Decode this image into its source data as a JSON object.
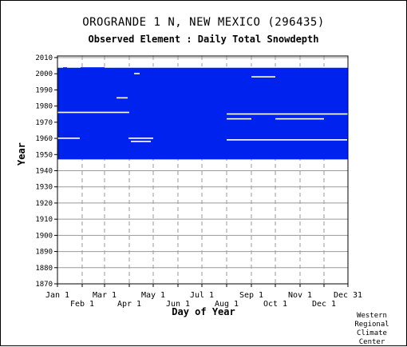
{
  "chart_data": {
    "type": "heatmap",
    "title": "OROGRANDE 1 N, NEW MEXICO   (296435)",
    "subtitle": "Observed Element : Daily Total Snowdepth",
    "xlabel": "Day of Year",
    "ylabel": "Year",
    "ylim": [
      1870,
      2011
    ],
    "xlim": [
      1,
      365
    ],
    "y_ticks": [
      1870,
      1880,
      1890,
      1900,
      1910,
      1920,
      1930,
      1940,
      1950,
      1960,
      1970,
      1980,
      1990,
      2000,
      2010
    ],
    "x_ticks_top_row": [
      {
        "label": "Jan 1",
        "day": 1
      },
      {
        "label": "Mar 1",
        "day": 60
      },
      {
        "label": "May 1",
        "day": 121
      },
      {
        "label": "Jul 1",
        "day": 182
      },
      {
        "label": "Sep 1",
        "day": 244
      },
      {
        "label": "Nov 1",
        "day": 305
      },
      {
        "label": "Dec 31",
        "day": 365
      }
    ],
    "x_ticks_bottom_row": [
      {
        "label": "Feb 1",
        "day": 32
      },
      {
        "label": "Apr 1",
        "day": 91
      },
      {
        "label": "Jun 1",
        "day": 152
      },
      {
        "label": "Aug 1",
        "day": 213
      },
      {
        "label": "Oct 1",
        "day": 274
      },
      {
        "label": "Dec 1",
        "day": 335
      }
    ],
    "grid": true,
    "data_color": "#0022ee",
    "record_coverage": {
      "start_year": 1948,
      "end_year": 2004
    },
    "missing_segments": [
      {
        "year": 2004,
        "start_day": 1,
        "end_day": 7
      },
      {
        "year": 2004,
        "start_day": 13,
        "end_day": 29
      },
      {
        "year": 2004,
        "start_day": 60,
        "end_day": 365
      },
      {
        "year": 2000,
        "start_day": 97,
        "end_day": 103
      },
      {
        "year": 1998,
        "start_day": 244,
        "end_day": 273
      },
      {
        "year": 1985,
        "start_day": 75,
        "end_day": 88
      },
      {
        "year": 1976,
        "start_day": 1,
        "end_day": 90
      },
      {
        "year": 1975,
        "start_day": 213,
        "end_day": 365
      },
      {
        "year": 1972,
        "start_day": 213,
        "end_day": 243
      },
      {
        "year": 1972,
        "start_day": 274,
        "end_day": 334
      },
      {
        "year": 1960,
        "start_day": 1,
        "end_day": 28
      },
      {
        "year": 1960,
        "start_day": 90,
        "end_day": 120
      },
      {
        "year": 1959,
        "start_day": 213,
        "end_day": 363
      },
      {
        "year": 1958,
        "start_day": 93,
        "end_day": 117
      }
    ]
  },
  "credit": "Western\nRegional\nClimate\nCenter"
}
